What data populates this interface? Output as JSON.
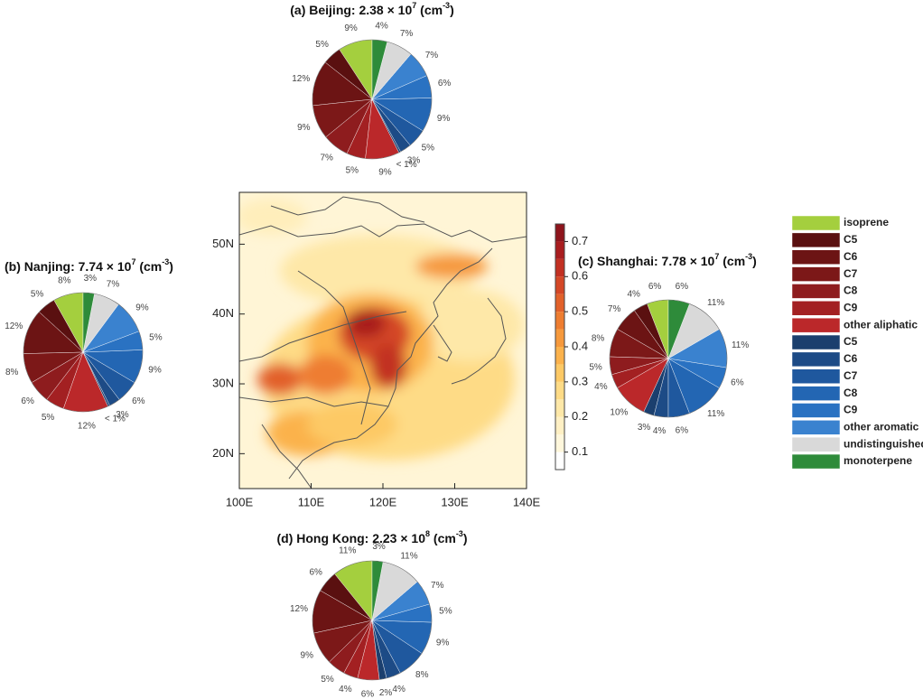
{
  "legend": {
    "labels": [
      "isoprene",
      "C5",
      "C6",
      "C7",
      "C8",
      "C9",
      "other aliphatic",
      "C5",
      "C6",
      "C7",
      "C8",
      "C9",
      "other aromatic",
      "undistinguished",
      "monoterpene"
    ],
    "colors": [
      "#a4cf3e",
      "#5a1010",
      "#6c1414",
      "#7c1818",
      "#8e1c1e",
      "#a32022",
      "#bb282a",
      "#1b3f6e",
      "#1d4b86",
      "#1f589e",
      "#2366b3",
      "#2a72c2",
      "#3a82cf",
      "#d9d9d9",
      "#2e8b3a"
    ]
  },
  "chart_data": [
    {
      "type": "map",
      "xlim": [
        100,
        140
      ],
      "ylim": [
        15,
        56
      ],
      "xticks": [
        {
          "value": 100,
          "label": "100E"
        },
        {
          "value": 110,
          "label": "110E"
        },
        {
          "value": 120,
          "label": "120E"
        },
        {
          "value": 130,
          "label": "130E"
        },
        {
          "value": 140,
          "label": "140E"
        }
      ],
      "yticks": [
        {
          "value": 20,
          "label": "20N"
        },
        {
          "value": 30,
          "label": "30N"
        },
        {
          "value": 40,
          "label": "40N"
        },
        {
          "value": 50,
          "label": "50N"
        }
      ],
      "colorbar": {
        "lim": [
          0.05,
          0.75
        ],
        "ticks": [
          0.1,
          0.2,
          0.3,
          0.4,
          0.5,
          0.6,
          0.7
        ],
        "colors": [
          "#ffffff",
          "#fff7dc",
          "#fff0c4",
          "#fee8a8",
          "#fedb86",
          "#fdc965",
          "#fbb24c",
          "#f6993c",
          "#ee7d30",
          "#e2612a",
          "#d44726",
          "#c23022",
          "#a91d1f",
          "#8e141c"
        ]
      }
    },
    {
      "type": "pie",
      "title": [
        "(a) Beijing: 2.38 × 10",
        "7",
        " (cm",
        "-3",
        ")"
      ],
      "values": [
        9,
        5,
        12,
        9,
        7,
        5,
        9,
        0.5,
        3,
        5,
        9,
        6,
        7,
        7,
        4
      ],
      "value_labels": [
        "9%",
        "5%",
        "12%",
        "9%",
        "7%",
        "5%",
        "9%",
        "< 1%",
        "3%",
        "5%",
        "9%",
        "6%",
        "7%",
        "7%",
        "4%"
      ]
    },
    {
      "type": "pie",
      "title": [
        "(b) Nanjing: 7.74 × 10",
        "7",
        " (cm",
        "-3",
        ")"
      ],
      "values": [
        8,
        5,
        12,
        8,
        6,
        5,
        12,
        0.5,
        3,
        6,
        9,
        5,
        9,
        7,
        3
      ],
      "value_labels": [
        "8%",
        "5%",
        "12%",
        "8%",
        "6%",
        "5%",
        "12%",
        "< 1%",
        "3%",
        "6%",
        "9%",
        "5%",
        "9%",
        "7%",
        "3%"
      ]
    },
    {
      "type": "pie",
      "title": [
        "(c) Shanghai: 7.78 × 10",
        "7",
        " (cm",
        "-3",
        ")"
      ],
      "values": [
        6,
        4,
        7,
        8,
        5,
        4,
        10,
        3,
        4,
        6,
        11,
        6,
        11,
        11,
        6
      ],
      "value_labels": [
        "6%",
        "4%",
        "7%",
        "8%",
        "5%",
        "4%",
        "10%",
        "3%",
        "4%",
        "6%",
        "11%",
        "6%",
        "11%",
        "11%",
        "6%"
      ]
    },
    {
      "type": "pie",
      "title": [
        "(d) Hong Kong: 2.23 × 10",
        "8",
        " (cm",
        "-3",
        ")"
      ],
      "values": [
        11,
        6,
        12,
        9,
        5,
        4,
        6,
        2,
        4,
        8,
        9,
        5,
        7,
        11,
        3
      ],
      "value_labels": [
        "11%",
        "6%",
        "12%",
        "9%",
        "5%",
        "4%",
        "6%",
        "2%",
        "4%",
        "8%",
        "9%",
        "5%",
        "7%",
        "11%",
        "3%"
      ]
    }
  ]
}
